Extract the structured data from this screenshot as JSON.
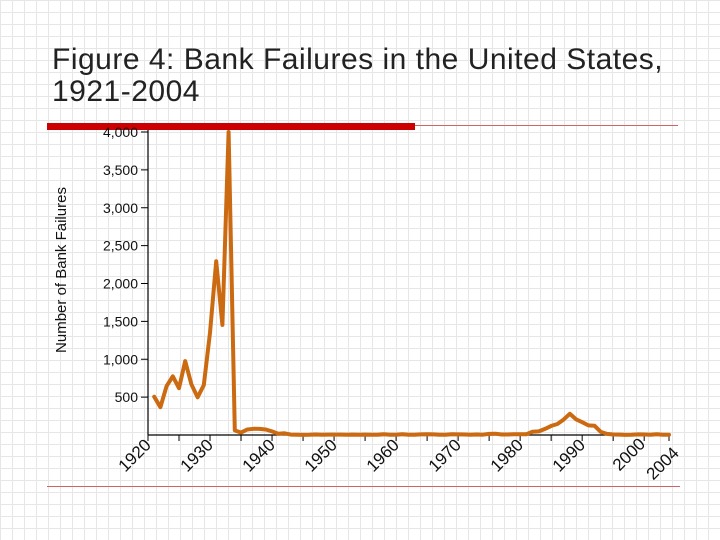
{
  "slide": {
    "title": "Figure 4:  Bank Failures in the United States, 1921-2004",
    "accent_color": "#cc0000",
    "rule_color": "#cc6666",
    "series_color": "#cc6a12"
  },
  "chart_data": {
    "type": "line",
    "title": "",
    "xlabel": "",
    "ylabel": "Number of Bank Failures",
    "ylim": [
      0,
      4000
    ],
    "xlim": [
      1920,
      2004
    ],
    "yticks": [
      {
        "value": 500,
        "label": "500"
      },
      {
        "value": 1000,
        "label": "1,000"
      },
      {
        "value": 1500,
        "label": "1,500"
      },
      {
        "value": 2000,
        "label": "2,000"
      },
      {
        "value": 2500,
        "label": "2,500"
      },
      {
        "value": 3000,
        "label": "3,000"
      },
      {
        "value": 3500,
        "label": "3,500"
      },
      {
        "value": 4000,
        "label": "4,000"
      }
    ],
    "xticks": [
      {
        "value": 1920,
        "label": "1920"
      },
      {
        "value": 1930,
        "label": "1930"
      },
      {
        "value": 1940,
        "label": "1940"
      },
      {
        "value": 1950,
        "label": "1950"
      },
      {
        "value": 1960,
        "label": "1960"
      },
      {
        "value": 1970,
        "label": "1970"
      },
      {
        "value": 1980,
        "label": "1980"
      },
      {
        "value": 1990,
        "label": "1990"
      },
      {
        "value": 2000,
        "label": "2000"
      },
      {
        "value": 2004,
        "label": "2004"
      }
    ],
    "grid": false,
    "legend": "none",
    "series": [
      {
        "x": [
          1921,
          1922,
          1923,
          1924,
          1925,
          1926,
          1927,
          1928,
          1929,
          1930,
          1931,
          1932,
          1933,
          1934,
          1935,
          1936,
          1937,
          1938,
          1939,
          1940,
          1941,
          1942,
          1943,
          1944,
          1945,
          1946,
          1947,
          1948,
          1949,
          1950,
          1951,
          1952,
          1953,
          1954,
          1955,
          1956,
          1957,
          1958,
          1959,
          1960,
          1961,
          1962,
          1963,
          1964,
          1965,
          1966,
          1967,
          1968,
          1969,
          1970,
          1971,
          1972,
          1973,
          1974,
          1975,
          1976,
          1977,
          1978,
          1979,
          1980,
          1981,
          1982,
          1983,
          1984,
          1985,
          1986,
          1987,
          1988,
          1989,
          1990,
          1991,
          1992,
          1993,
          1994,
          1995,
          1996,
          1997,
          1998,
          1999,
          2000,
          2001,
          2002,
          2003,
          2004
        ],
        "values": [
          505,
          367,
          646,
          775,
          618,
          976,
          669,
          498,
          659,
          1350,
          2293,
          1453,
          4000,
          61,
          32,
          72,
          82,
          80,
          72,
          48,
          17,
          23,
          5,
          2,
          1,
          2,
          6,
          3,
          5,
          5,
          5,
          4,
          5,
          4,
          5,
          3,
          3,
          9,
          3,
          3,
          9,
          3,
          2,
          8,
          9,
          8,
          4,
          3,
          9,
          8,
          6,
          3,
          6,
          4,
          14,
          17,
          6,
          7,
          10,
          11,
          10,
          42,
          48,
          80,
          120,
          145,
          203,
          280,
          207,
          169,
          127,
          122,
          41,
          15,
          6,
          5,
          1,
          3,
          8,
          7,
          4,
          11,
          3,
          4
        ]
      }
    ]
  }
}
